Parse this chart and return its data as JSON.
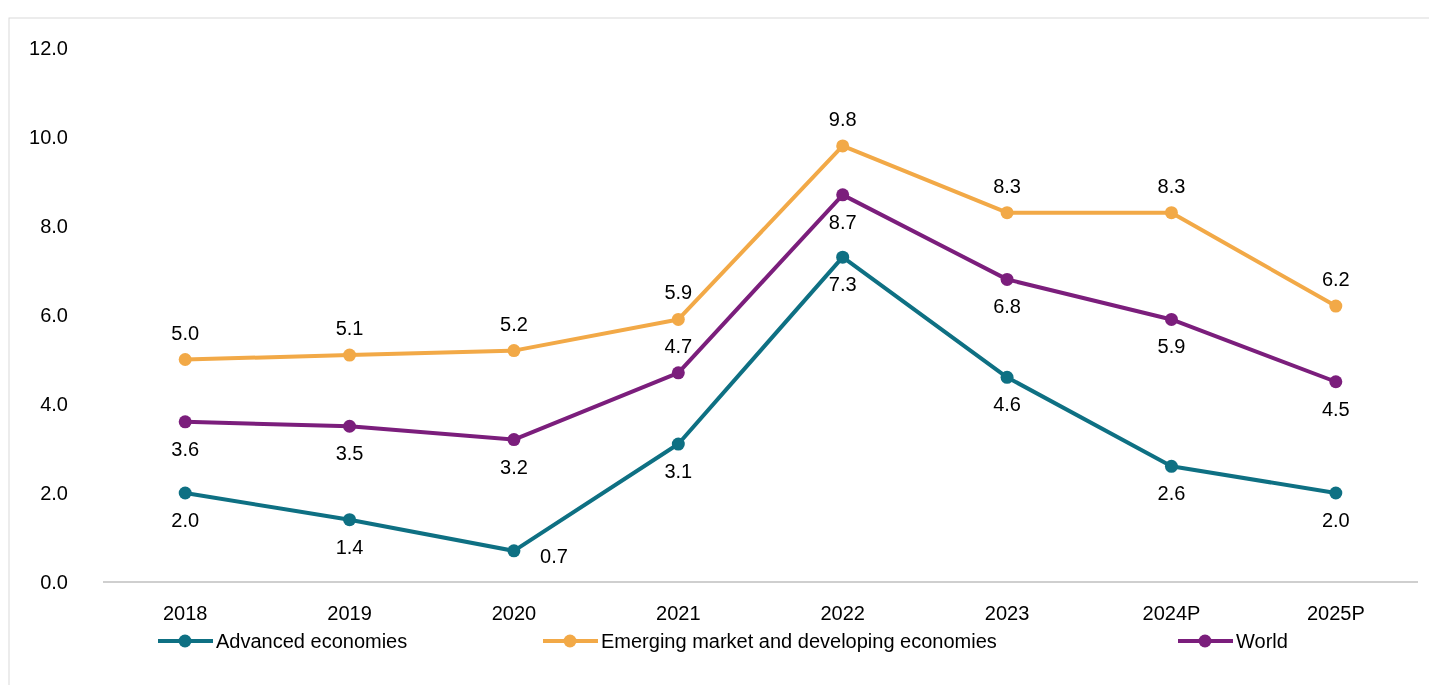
{
  "chart_data": {
    "type": "line",
    "categories": [
      "2018",
      "2019",
      "2020",
      "2021",
      "2022",
      "2023",
      "2024P",
      "2025P"
    ],
    "series": [
      {
        "name": "Advanced economies",
        "color": "#0e7083",
        "values": [
          2.0,
          1.4,
          0.7,
          3.1,
          7.3,
          4.6,
          2.6,
          2.0
        ],
        "value_labels": [
          "2.0",
          "1.4",
          "0.7",
          "3.1",
          "7.3",
          "4.6",
          "2.6",
          "2.0"
        ]
      },
      {
        "name": "Emerging market and developing economies",
        "color": "#f2a947",
        "values": [
          5.0,
          5.1,
          5.2,
          5.9,
          9.8,
          8.3,
          8.3,
          6.2
        ],
        "value_labels": [
          "5.0",
          "5.1",
          "5.2",
          "5.9",
          "9.8",
          "8.3",
          "8.3",
          "6.2"
        ]
      },
      {
        "name": "World",
        "color": "#7b1e7c",
        "values": [
          3.6,
          3.5,
          3.2,
          4.7,
          8.7,
          6.8,
          5.9,
          4.5
        ],
        "value_labels": [
          "3.6",
          "3.5",
          "3.2",
          "4.7",
          "8.7",
          "6.8",
          "5.9",
          "4.5"
        ]
      }
    ],
    "ylim": [
      0,
      12
    ],
    "yticks": [
      {
        "value": 0,
        "label": "0.0"
      },
      {
        "value": 2,
        "label": "2.0"
      },
      {
        "value": 4,
        "label": "4.0"
      },
      {
        "value": 6,
        "label": "6.0"
      },
      {
        "value": 8,
        "label": "8.0"
      },
      {
        "value": 10,
        "label": "10.0"
      },
      {
        "value": 12,
        "label": "12.0"
      }
    ],
    "grid": false,
    "legend": "bottom",
    "marker": "circle",
    "line_style": "solid"
  }
}
